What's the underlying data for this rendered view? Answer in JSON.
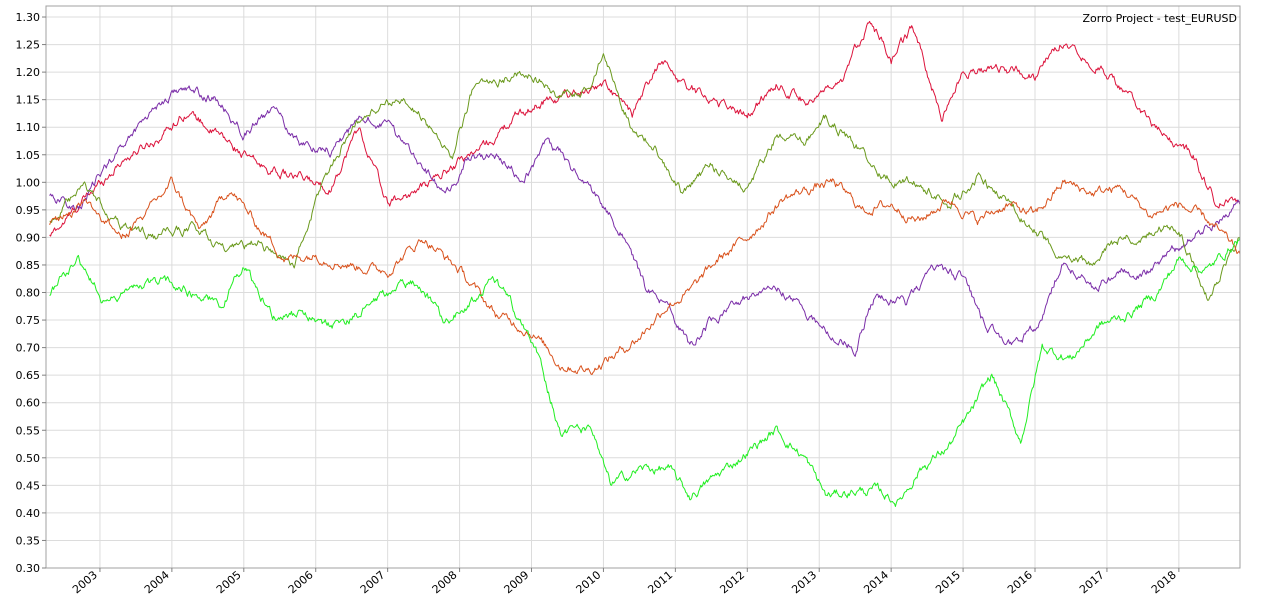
{
  "chart_data": {
    "type": "line",
    "title": "Zorro Project - test_EURUSD",
    "xlabel": "",
    "ylabel": "",
    "x_range": [
      2002.25,
      2018.85
    ],
    "ylim": [
      0.3,
      1.32
    ],
    "y_ticks": [
      0.3,
      0.35,
      0.4,
      0.45,
      0.5,
      0.55,
      0.6,
      0.65,
      0.7,
      0.75,
      0.8,
      0.85,
      0.9,
      0.95,
      1.0,
      1.05,
      1.1,
      1.15,
      1.2,
      1.25,
      1.3
    ],
    "y_tick_labels": [
      "0.30",
      "0.35",
      "0.40",
      "0.45",
      "0.50",
      "0.55",
      "0.60",
      "0.65",
      "0.70",
      "0.75",
      "0.80",
      "0.85",
      "0.90",
      "0.95",
      "1.00",
      "1.05",
      "1.10",
      "1.15",
      "1.20",
      "1.25",
      "1.30"
    ],
    "x_ticks": [
      2003,
      2004,
      2005,
      2006,
      2007,
      2008,
      2009,
      2010,
      2011,
      2012,
      2013,
      2014,
      2015,
      2016,
      2017,
      2018
    ],
    "x_tick_labels": [
      "2003",
      "2004",
      "2005",
      "2006",
      "2007",
      "2008",
      "2009",
      "2010",
      "2011",
      "2012",
      "2013",
      "2014",
      "2015",
      "2016",
      "2017",
      "2018"
    ],
    "grid": true,
    "legend": "none",
    "series": [
      {
        "color": "#DC143C",
        "x": [
          2002.3,
          2002.8,
          2003.3,
          2003.8,
          2004.2,
          2004.8,
          2005.2,
          2005.7,
          2006.2,
          2006.6,
          2007.0,
          2007.5,
          2008.0,
          2008.4,
          2008.8,
          2009.2,
          2009.6,
          2010.0,
          2010.4,
          2010.8,
          2011.2,
          2011.7,
          2012.0,
          2012.4,
          2012.8,
          2013.3,
          2013.7,
          2014.0,
          2014.3,
          2014.7,
          2015.0,
          2015.5,
          2016.0,
          2016.4,
          2016.7,
          2017.0,
          2017.4,
          2017.8,
          2018.2,
          2018.5,
          2018.85
        ],
        "values": [
          0.9,
          0.97,
          1.04,
          1.08,
          1.13,
          1.07,
          1.03,
          1.01,
          0.99,
          1.1,
          0.96,
          0.99,
          1.04,
          1.07,
          1.12,
          1.15,
          1.16,
          1.18,
          1.12,
          1.22,
          1.17,
          1.14,
          1.12,
          1.18,
          1.15,
          1.17,
          1.3,
          1.22,
          1.28,
          1.12,
          1.2,
          1.21,
          1.19,
          1.26,
          1.23,
          1.2,
          1.14,
          1.08,
          1.05,
          0.97,
          0.96
        ]
      },
      {
        "color": "#7B2EA8",
        "x": [
          2002.3,
          2002.7,
          2003.2,
          2003.7,
          2004.1,
          2004.6,
          2005.0,
          2005.4,
          2005.8,
          2006.2,
          2006.7,
          2007.0,
          2007.4,
          2007.8,
          2008.1,
          2008.5,
          2008.9,
          2009.2,
          2009.6,
          2010.0,
          2010.3,
          2010.6,
          2010.9,
          2011.2,
          2011.5,
          2011.9,
          2012.3,
          2012.7,
          2013.1,
          2013.5,
          2013.8,
          2014.2,
          2014.6,
          2015.0,
          2015.3,
          2015.7,
          2016.0,
          2016.4,
          2016.8,
          2017.2,
          2017.6,
          2018.0,
          2018.4,
          2018.85
        ],
        "values": [
          0.98,
          0.95,
          1.05,
          1.13,
          1.17,
          1.15,
          1.09,
          1.13,
          1.07,
          1.06,
          1.12,
          1.1,
          1.05,
          0.97,
          1.04,
          1.05,
          1.0,
          1.08,
          1.02,
          0.96,
          0.9,
          0.8,
          0.78,
          0.7,
          0.75,
          0.78,
          0.82,
          0.78,
          0.73,
          0.7,
          0.8,
          0.78,
          0.84,
          0.83,
          0.74,
          0.71,
          0.73,
          0.86,
          0.81,
          0.84,
          0.84,
          0.88,
          0.92,
          0.96
        ]
      },
      {
        "color": "#6B9A1E",
        "x": [
          2002.3,
          2002.8,
          2003.3,
          2003.8,
          2004.3,
          2004.8,
          2005.2,
          2005.7,
          2006.1,
          2006.5,
          2007.0,
          2007.4,
          2007.9,
          2008.2,
          2008.6,
          2009.0,
          2009.4,
          2009.8,
          2010.0,
          2010.4,
          2010.8,
          2011.1,
          2011.5,
          2012.0,
          2012.4,
          2012.8,
          2013.1,
          2013.5,
          2013.9,
          2014.3,
          2014.8,
          2015.2,
          2015.6,
          2016.0,
          2016.4,
          2016.8,
          2017.2,
          2017.6,
          2018.0,
          2018.4,
          2018.85
        ],
        "values": [
          0.93,
          0.99,
          0.92,
          0.9,
          0.92,
          0.87,
          0.89,
          0.85,
          1.0,
          1.1,
          1.15,
          1.13,
          1.05,
          1.17,
          1.19,
          1.2,
          1.15,
          1.17,
          1.23,
          1.1,
          1.05,
          0.98,
          1.03,
          0.99,
          1.08,
          1.07,
          1.12,
          1.07,
          1.01,
          1.0,
          0.96,
          1.01,
          0.96,
          0.92,
          0.86,
          0.85,
          0.9,
          0.91,
          0.92,
          0.79,
          0.9
        ]
      },
      {
        "color": "#D9531E",
        "x": [
          2002.3,
          2002.8,
          2003.3,
          2003.7,
          2004.0,
          2004.4,
          2004.8,
          2005.2,
          2005.6,
          2006.0,
          2006.5,
          2007.0,
          2007.5,
          2008.0,
          2008.5,
          2009.0,
          2009.4,
          2009.8,
          2010.2,
          2010.5,
          2010.9,
          2011.2,
          2011.6,
          2012.0,
          2012.5,
          2012.9,
          2013.2,
          2013.6,
          2014.0,
          2014.4,
          2014.8,
          2015.2,
          2015.6,
          2016.0,
          2016.4,
          2016.8,
          2017.2,
          2017.6,
          2018.0,
          2018.4,
          2018.85
        ],
        "values": [
          0.92,
          0.97,
          0.9,
          0.95,
          1.0,
          0.91,
          0.99,
          0.92,
          0.86,
          0.87,
          0.85,
          0.84,
          0.9,
          0.84,
          0.76,
          0.73,
          0.67,
          0.66,
          0.69,
          0.72,
          0.78,
          0.8,
          0.86,
          0.9,
          0.97,
          0.99,
          1.0,
          0.95,
          0.96,
          0.93,
          0.97,
          0.93,
          0.96,
          0.94,
          1.0,
          0.98,
          0.99,
          0.94,
          0.96,
          0.93,
          0.87
        ]
      },
      {
        "color": "#22EE22",
        "x": [
          2002.3,
          2002.7,
          2003.1,
          2003.5,
          2003.9,
          2004.3,
          2004.7,
          2005.0,
          2005.4,
          2005.8,
          2006.2,
          2006.6,
          2007.0,
          2007.4,
          2007.8,
          2008.1,
          2008.5,
          2008.8,
          2009.1,
          2009.4,
          2009.8,
          2010.1,
          2010.5,
          2010.9,
          2011.2,
          2011.6,
          2012.0,
          2012.4,
          2012.8,
          2013.1,
          2013.5,
          2013.8,
          2014.1,
          2014.4,
          2014.8,
          2015.1,
          2015.4,
          2015.8,
          2016.1,
          2016.5,
          2016.9,
          2017.3,
          2017.7,
          2018.0,
          2018.4,
          2018.85
        ],
        "values": [
          0.8,
          0.86,
          0.78,
          0.81,
          0.82,
          0.8,
          0.78,
          0.85,
          0.76,
          0.76,
          0.74,
          0.76,
          0.8,
          0.82,
          0.75,
          0.78,
          0.82,
          0.76,
          0.68,
          0.55,
          0.55,
          0.45,
          0.48,
          0.48,
          0.43,
          0.47,
          0.51,
          0.55,
          0.5,
          0.43,
          0.44,
          0.44,
          0.42,
          0.48,
          0.52,
          0.58,
          0.65,
          0.53,
          0.7,
          0.68,
          0.74,
          0.76,
          0.8,
          0.86,
          0.84,
          0.9
        ]
      }
    ]
  }
}
